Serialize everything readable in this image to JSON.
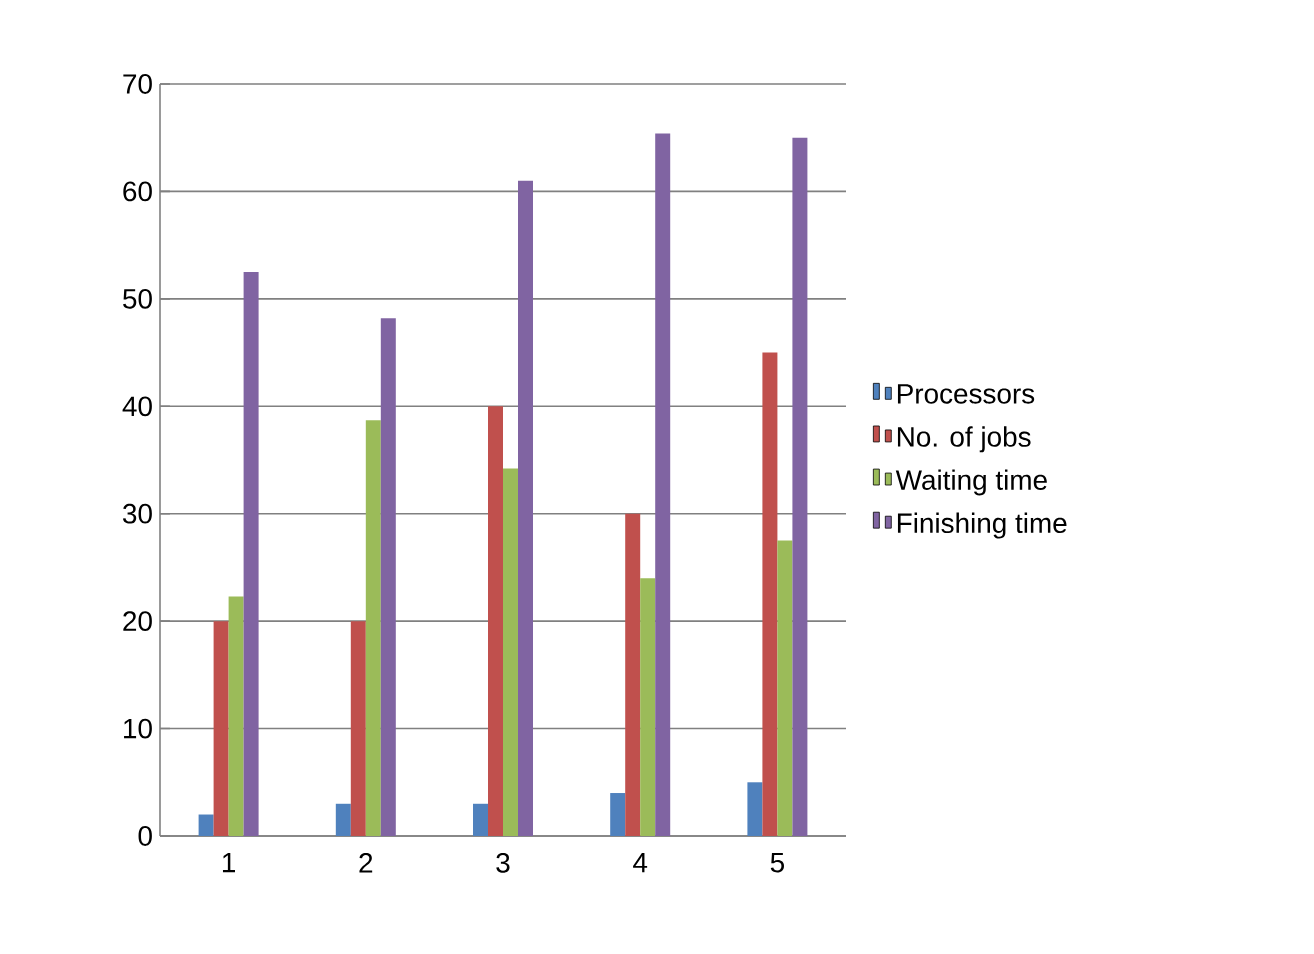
{
  "chart_data": {
    "type": "bar",
    "categories": [
      "1",
      "2",
      "3",
      "4",
      "5"
    ],
    "series": [
      {
        "name": "Processors",
        "color": "#4f81bd",
        "values": [
          2,
          3,
          3,
          4,
          5
        ]
      },
      {
        "name": "No. of jobs",
        "color": "#c0504d",
        "values": [
          20,
          20,
          40,
          30,
          45
        ]
      },
      {
        "name": "Waiting time",
        "color": "#9bbb59",
        "values": [
          22.3,
          38.7,
          34.2,
          24,
          27.5
        ]
      },
      {
        "name": "Finishing time",
        "color": "#8064a2",
        "values": [
          52.5,
          48.2,
          61,
          65.4,
          65
        ]
      }
    ],
    "ylim": [
      0,
      70
    ],
    "yticks": [
      0,
      10,
      20,
      30,
      40,
      50,
      60,
      70
    ],
    "grid": "y",
    "legend": "right"
  }
}
